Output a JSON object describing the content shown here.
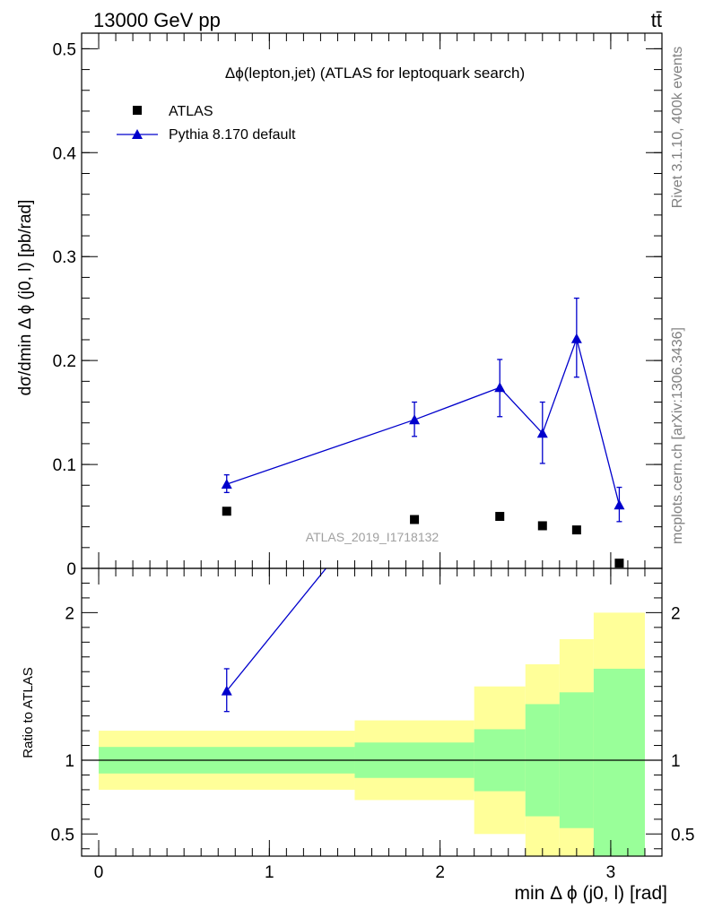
{
  "header": {
    "left": "13000 GeV pp",
    "right": "tt̄"
  },
  "side_labels": {
    "rivet": "Rivet 3.1.10,  400k events",
    "mcplots": "mcplots.cern.ch [arXiv:1306.3436]"
  },
  "chart_data": [
    {
      "type": "scatter",
      "title": "Δϕ(lepton,jet) (ATLAS for leptoquark search)",
      "watermark": "ATLAS_2019_I1718132",
      "ylabel": "dσ/dmin Δ ϕ (j0, l) [pb/rad]",
      "xlim": [
        -0.1,
        3.3
      ],
      "ylim": [
        0,
        0.515
      ],
      "yticks": [
        0,
        0.1,
        0.2,
        0.3,
        0.4,
        0.5
      ],
      "ytick_labels": [
        "0",
        "0.1",
        "0.2",
        "0.3",
        "0.4",
        "0.5"
      ],
      "legend_position": "top-left",
      "series": [
        {
          "name": "ATLAS",
          "marker": "square",
          "color": "#000000",
          "points": [
            {
              "x": 0.75,
              "y": 0.055
            },
            {
              "x": 1.85,
              "y": 0.047
            },
            {
              "x": 2.35,
              "y": 0.05
            },
            {
              "x": 2.6,
              "y": 0.041
            },
            {
              "x": 2.8,
              "y": 0.037
            },
            {
              "x": 3.05,
              "y": 0.005
            }
          ]
        },
        {
          "name": "Pythia 8.170 default",
          "marker": "triangle",
          "color": "#0000cc",
          "points": [
            {
              "x": 0.75,
              "y": 0.081,
              "ylo": 0.073,
              "yhi": 0.09
            },
            {
              "x": 1.85,
              "y": 0.143,
              "ylo": 0.127,
              "yhi": 0.16
            },
            {
              "x": 2.35,
              "y": 0.174,
              "ylo": 0.146,
              "yhi": 0.201
            },
            {
              "x": 2.6,
              "y": 0.13,
              "ylo": 0.101,
              "yhi": 0.16
            },
            {
              "x": 2.8,
              "y": 0.221,
              "ylo": 0.184,
              "yhi": 0.26
            },
            {
              "x": 3.05,
              "y": 0.061,
              "ylo": 0.045,
              "yhi": 0.078
            }
          ]
        }
      ]
    },
    {
      "type": "area",
      "ylabel": "Ratio to ATLAS",
      "xlabel": "min Δ ϕ (j0, l) [rad]",
      "xlim": [
        -0.1,
        3.3
      ],
      "ylim": [
        0.35,
        2.3
      ],
      "xticks": [
        0,
        1,
        2,
        3
      ],
      "xtick_labels": [
        "0",
        "1",
        "2",
        "3"
      ],
      "yticks": [
        0.5,
        1,
        2
      ],
      "ytick_labels": [
        "0.5",
        "1",
        "2"
      ],
      "reference_line": 1,
      "bands": [
        {
          "x0": 0.0,
          "x1": 1.5,
          "inner": [
            0.91,
            1.09
          ],
          "outer": [
            0.8,
            1.2
          ]
        },
        {
          "x0": 1.5,
          "x1": 2.2,
          "inner": [
            0.88,
            1.12
          ],
          "outer": [
            0.73,
            1.27
          ]
        },
        {
          "x0": 2.2,
          "x1": 2.5,
          "inner": [
            0.79,
            1.21
          ],
          "outer": [
            0.5,
            1.5
          ]
        },
        {
          "x0": 2.5,
          "x1": 2.7,
          "inner": [
            0.62,
            1.38
          ],
          "outer": [
            0.35,
            1.65
          ]
        },
        {
          "x0": 2.7,
          "x1": 2.9,
          "inner": [
            0.54,
            1.46
          ],
          "outer": [
            0.35,
            1.82
          ]
        },
        {
          "x0": 2.9,
          "x1": 3.2,
          "inner": [
            0.35,
            1.62
          ],
          "outer": [
            0.35,
            2.0
          ]
        }
      ],
      "series": [
        {
          "name": "Pythia 8.170 default",
          "color": "#0000cc",
          "points": [
            {
              "x": 0.75,
              "y": 1.47,
              "ylo": 1.33,
              "yhi": 1.62
            },
            {
              "x": 1.85,
              "y": 3.04
            }
          ]
        }
      ],
      "colors": {
        "inner": "#99ff99",
        "outer": "#ffff99"
      }
    }
  ]
}
